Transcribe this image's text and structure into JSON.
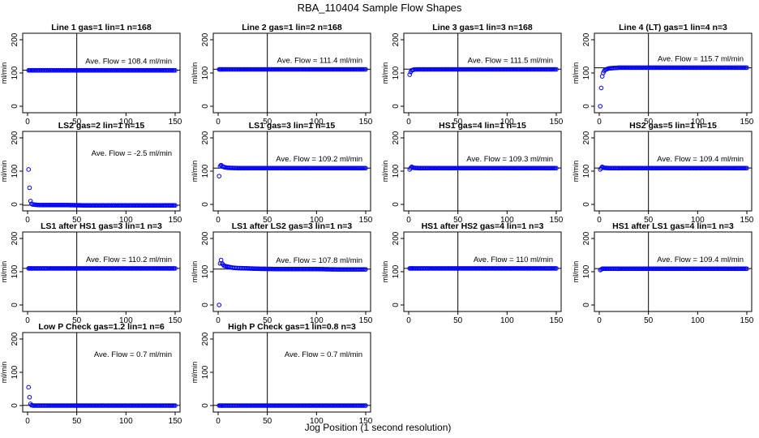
{
  "figure": {
    "title": "RBA_110404  Sample Flow Shapes",
    "xlabel": "Jog Position (1 second resolution)",
    "ylabel": "ml/min",
    "x_ticks": [
      0,
      50,
      100,
      150
    ],
    "y_ticks": [
      0,
      100,
      200
    ],
    "marker_color": "#0000ff",
    "line_color": "#000000",
    "annotation_prefix": "Ave. Flow =",
    "annotation_unit": "ml/min"
  },
  "chart_data": [
    {
      "type": "scatter",
      "title": "Line 1 gas=1 lin=1 n=168",
      "ave_flow": "108.4",
      "ref_y": 108.4,
      "vline_x": 50,
      "xlim": [
        0,
        150
      ],
      "ylim": [
        0,
        200
      ],
      "x": [
        1,
        3,
        5,
        10,
        20,
        40,
        60,
        80,
        100,
        120,
        140,
        150
      ],
      "y": [
        108,
        108,
        108,
        108,
        108,
        108,
        108,
        108,
        108,
        108,
        108,
        108
      ]
    },
    {
      "type": "scatter",
      "title": "Line 2 gas=1 lin=2 n=168",
      "ave_flow": "111.4",
      "ref_y": 111.4,
      "vline_x": 50,
      "xlim": [
        0,
        150
      ],
      "ylim": [
        0,
        200
      ],
      "x": [
        1,
        3,
        5,
        10,
        20,
        40,
        60,
        80,
        100,
        120,
        140,
        150
      ],
      "y": [
        111,
        111,
        111,
        111,
        111,
        111,
        111,
        111,
        111,
        111,
        111,
        111
      ]
    },
    {
      "type": "scatter",
      "title": "Line 3 gas=1 lin=3 n=168",
      "ave_flow": "111.5",
      "ref_y": 111.5,
      "vline_x": 50,
      "xlim": [
        0,
        150
      ],
      "ylim": [
        0,
        200
      ],
      "x": [
        1,
        2,
        3,
        5,
        8,
        12,
        20,
        40,
        60,
        80,
        100,
        120,
        140,
        150
      ],
      "y": [
        95,
        103,
        108,
        110,
        111,
        111,
        111,
        111,
        111,
        111,
        111,
        111,
        111,
        111
      ]
    },
    {
      "type": "scatter",
      "title": "Line 4 (LT) gas=1 lin=4 n=3",
      "ave_flow": "115.7",
      "ref_y": 115.7,
      "vline_x": 50,
      "xlim": [
        0,
        150
      ],
      "ylim": [
        0,
        200
      ],
      "x": [
        1,
        2,
        3,
        4,
        5,
        6,
        8,
        10,
        15,
        20,
        40,
        60,
        80,
        100,
        120,
        140,
        150
      ],
      "y": [
        0,
        55,
        90,
        100,
        106,
        110,
        112,
        114,
        115,
        116,
        116,
        116,
        116,
        116,
        116,
        116,
        116
      ]
    },
    {
      "type": "scatter",
      "title": "LS2 gas=2 lin=1 n=15",
      "ave_flow": "-2.5",
      "ref_y": -2.5,
      "vline_x": 50,
      "xlim": [
        0,
        150
      ],
      "ylim": [
        0,
        200
      ],
      "x": [
        1,
        2,
        3,
        4,
        5,
        8,
        12,
        20,
        40,
        60,
        80,
        100,
        120,
        140,
        150
      ],
      "y": [
        105,
        50,
        10,
        2,
        0,
        -1,
        -2,
        -2,
        -2,
        -3,
        -3,
        -3,
        -3,
        -3,
        -3
      ]
    },
    {
      "type": "scatter",
      "title": "LS1 gas=3 lin=1 n=15",
      "ave_flow": "109.2",
      "ref_y": 109.2,
      "vline_x": 50,
      "xlim": [
        0,
        150
      ],
      "ylim": [
        0,
        200
      ],
      "x": [
        1,
        2,
        3,
        4,
        6,
        10,
        20,
        40,
        60,
        80,
        100,
        120,
        140,
        150
      ],
      "y": [
        85,
        115,
        118,
        115,
        112,
        110,
        109,
        109,
        109,
        109,
        109,
        109,
        109,
        109
      ]
    },
    {
      "type": "scatter",
      "title": "HS1 gas=4 lin=1 n=15",
      "ave_flow": "109.3",
      "ref_y": 109.3,
      "vline_x": 50,
      "xlim": [
        0,
        150
      ],
      "ylim": [
        0,
        200
      ],
      "x": [
        1,
        3,
        5,
        10,
        20,
        40,
        60,
        80,
        100,
        120,
        140,
        150
      ],
      "y": [
        105,
        113,
        110,
        109,
        109,
        109,
        109,
        109,
        109,
        109,
        109,
        109
      ]
    },
    {
      "type": "scatter",
      "title": "HS2 gas=5 lin=1 n=15",
      "ave_flow": "109.4",
      "ref_y": 109.4,
      "vline_x": 50,
      "xlim": [
        0,
        150
      ],
      "ylim": [
        0,
        200
      ],
      "x": [
        1,
        3,
        5,
        10,
        20,
        40,
        60,
        80,
        100,
        120,
        140,
        150
      ],
      "y": [
        105,
        113,
        110,
        109,
        109,
        109,
        109,
        109,
        109,
        109,
        109,
        109
      ]
    },
    {
      "type": "scatter",
      "title": "LS1 after HS1 gas=3 lin=1 n=3",
      "ave_flow": "110.2",
      "ref_y": 110.2,
      "vline_x": 50,
      "xlim": [
        0,
        150
      ],
      "ylim": [
        0,
        200
      ],
      "x": [
        1,
        3,
        5,
        10,
        20,
        40,
        60,
        80,
        100,
        120,
        140,
        150
      ],
      "y": [
        110,
        110,
        110,
        110,
        110,
        110,
        110,
        110,
        110,
        110,
        110,
        110
      ]
    },
    {
      "type": "scatter",
      "title": "LS1 after LS2 gas=3 lin=1 n=3",
      "ave_flow": "107.8",
      "ref_y": 107.8,
      "vline_x": 50,
      "xlim": [
        0,
        150
      ],
      "ylim": [
        0,
        200
      ],
      "x": [
        1,
        2,
        3,
        4,
        6,
        10,
        15,
        20,
        30,
        40,
        60,
        80,
        100,
        120,
        140,
        150
      ],
      "y": [
        0,
        125,
        135,
        125,
        118,
        115,
        112,
        111,
        110,
        109,
        108,
        108,
        108,
        107,
        107,
        107
      ]
    },
    {
      "type": "scatter",
      "title": "HS1 after HS2 gas=4 lin=1 n=3",
      "ave_flow": "110",
      "ref_y": 110,
      "vline_x": 50,
      "xlim": [
        0,
        150
      ],
      "ylim": [
        0,
        200
      ],
      "x": [
        1,
        3,
        5,
        10,
        20,
        40,
        60,
        80,
        100,
        120,
        140,
        150
      ],
      "y": [
        110,
        110,
        110,
        110,
        110,
        110,
        110,
        110,
        110,
        110,
        110,
        110
      ]
    },
    {
      "type": "scatter",
      "title": "HS1 after LS1 gas=4 lin=1 n=3",
      "ave_flow": "109.4",
      "ref_y": 109.4,
      "vline_x": 50,
      "xlim": [
        0,
        150
      ],
      "ylim": [
        0,
        200
      ],
      "x": [
        1,
        3,
        5,
        10,
        20,
        40,
        60,
        80,
        100,
        120,
        140,
        150
      ],
      "y": [
        105,
        109,
        109,
        109,
        109,
        109,
        109,
        109,
        109,
        109,
        109,
        109
      ]
    },
    {
      "type": "scatter",
      "title": "Low P Check gas=1.2 lin=1 n=6",
      "ave_flow": "0.7",
      "ref_y": 0.7,
      "vline_x": 50,
      "xlim": [
        0,
        150
      ],
      "ylim": [
        0,
        200
      ],
      "x": [
        1,
        2,
        3,
        4,
        6,
        10,
        20,
        40,
        60,
        80,
        100,
        120,
        140,
        150
      ],
      "y": [
        55,
        25,
        5,
        1,
        0,
        0,
        0,
        0,
        0,
        0,
        0,
        0,
        0,
        0
      ]
    },
    {
      "type": "scatter",
      "title": "High P Check gas=1 lin=0.8 n=3",
      "ave_flow": "0.7",
      "ref_y": 0.7,
      "vline_x": 50,
      "xlim": [
        0,
        150
      ],
      "ylim": [
        0,
        200
      ],
      "x": [
        1,
        3,
        5,
        10,
        20,
        40,
        60,
        80,
        100,
        120,
        140,
        150
      ],
      "y": [
        0,
        0,
        0,
        0,
        0,
        0,
        0,
        0,
        0,
        0,
        0,
        0
      ]
    }
  ]
}
